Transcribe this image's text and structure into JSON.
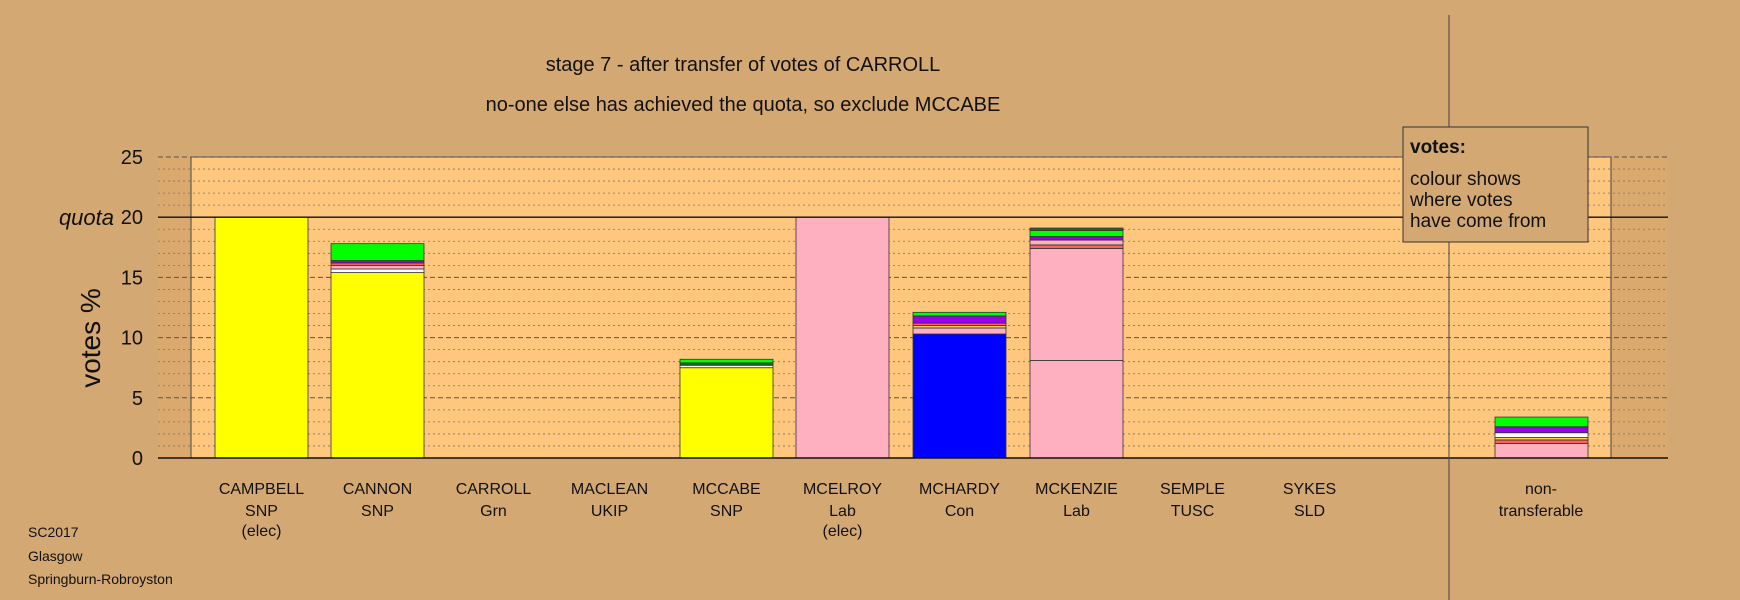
{
  "chart_data": {
    "type": "bar",
    "stacked": true,
    "title": "stage 7 - after transfer of votes of CARROLL",
    "subtitle": "no-one else has achieved the quota, so exclude MCCABE",
    "ylabel": "votes %",
    "ylim": [
      0,
      25
    ],
    "yticks": [
      0,
      5,
      10,
      15,
      20,
      25
    ],
    "quota_label": "quota",
    "quota_value": 20,
    "grid": true,
    "colors": {
      "SNP": "#ffff00",
      "Lab": "#ffb0c0",
      "Con": "#0000ff",
      "Grn": "#00ff00",
      "UKIP": "#9a00ee",
      "TUSC": "#ff6060",
      "SLD": "#ffd040",
      "other": "#ffffff",
      "dark": "#226622"
    },
    "candidates": [
      {
        "name": "CAMPBELL",
        "party": "SNP",
        "note": "(elec)",
        "segments": [
          {
            "value": 20.0,
            "color": "SNP"
          }
        ]
      },
      {
        "name": "CANNON",
        "party": "SNP",
        "note": "",
        "segments": [
          {
            "value": 15.4,
            "color": "SNP"
          },
          {
            "value": 0.3,
            "color": "other"
          },
          {
            "value": 0.3,
            "color": "Lab"
          },
          {
            "value": 0.2,
            "color": "TUSC"
          },
          {
            "value": 0.2,
            "color": "UKIP"
          },
          {
            "value": 1.4,
            "color": "Grn"
          }
        ]
      },
      {
        "name": "CARROLL",
        "party": "Grn",
        "note": "",
        "segments": []
      },
      {
        "name": "MACLEAN",
        "party": "UKIP",
        "note": "",
        "segments": []
      },
      {
        "name": "MCCABE",
        "party": "SNP",
        "note": "",
        "segments": [
          {
            "value": 7.5,
            "color": "SNP"
          },
          {
            "value": 0.2,
            "color": "other"
          },
          {
            "value": 0.2,
            "color": "dark"
          },
          {
            "value": 0.3,
            "color": "Grn"
          }
        ]
      },
      {
        "name": "MCELROY",
        "party": "Lab",
        "note": "(elec)",
        "segments": [
          {
            "value": 20.0,
            "color": "Lab"
          }
        ]
      },
      {
        "name": "MCHARDY",
        "party": "Con",
        "note": "",
        "segments": [
          {
            "value": 10.3,
            "color": "Con"
          },
          {
            "value": 0.5,
            "color": "Lab"
          },
          {
            "value": 0.2,
            "color": "SLD"
          },
          {
            "value": 0.2,
            "color": "TUSC"
          },
          {
            "value": 0.6,
            "color": "UKIP"
          },
          {
            "value": 0.3,
            "color": "Grn"
          }
        ]
      },
      {
        "name": "MCKENZIE",
        "party": "Lab",
        "note": "",
        "segments": [
          {
            "value": 8.1,
            "color": "Lab"
          },
          {
            "value": 9.3,
            "color": "Lab"
          },
          {
            "value": 0.3,
            "color": "TUSC"
          },
          {
            "value": 0.4,
            "color": "Lab"
          },
          {
            "value": 0.3,
            "color": "UKIP"
          },
          {
            "value": 0.5,
            "color": "Grn"
          },
          {
            "value": 0.2,
            "color": "dark"
          }
        ]
      },
      {
        "name": "SEMPLE",
        "party": "TUSC",
        "note": "",
        "segments": []
      },
      {
        "name": "SYKES",
        "party": "SLD",
        "note": "",
        "segments": []
      }
    ],
    "nontransferable": {
      "label_line1": "non-",
      "label_line2": "transferable",
      "segments": [
        {
          "value": 1.2,
          "color": "Lab"
        },
        {
          "value": 0.3,
          "color": "TUSC"
        },
        {
          "value": 0.2,
          "color": "SLD"
        },
        {
          "value": 0.4,
          "color": "other"
        },
        {
          "value": 0.5,
          "color": "UKIP"
        },
        {
          "value": 0.8,
          "color": "Grn"
        }
      ]
    },
    "legend": {
      "title": "votes:",
      "lines": [
        "colour shows",
        "where votes",
        "have come from"
      ]
    }
  },
  "footer": [
    "SC2017",
    "Glasgow",
    "Springburn-Robroyston"
  ]
}
